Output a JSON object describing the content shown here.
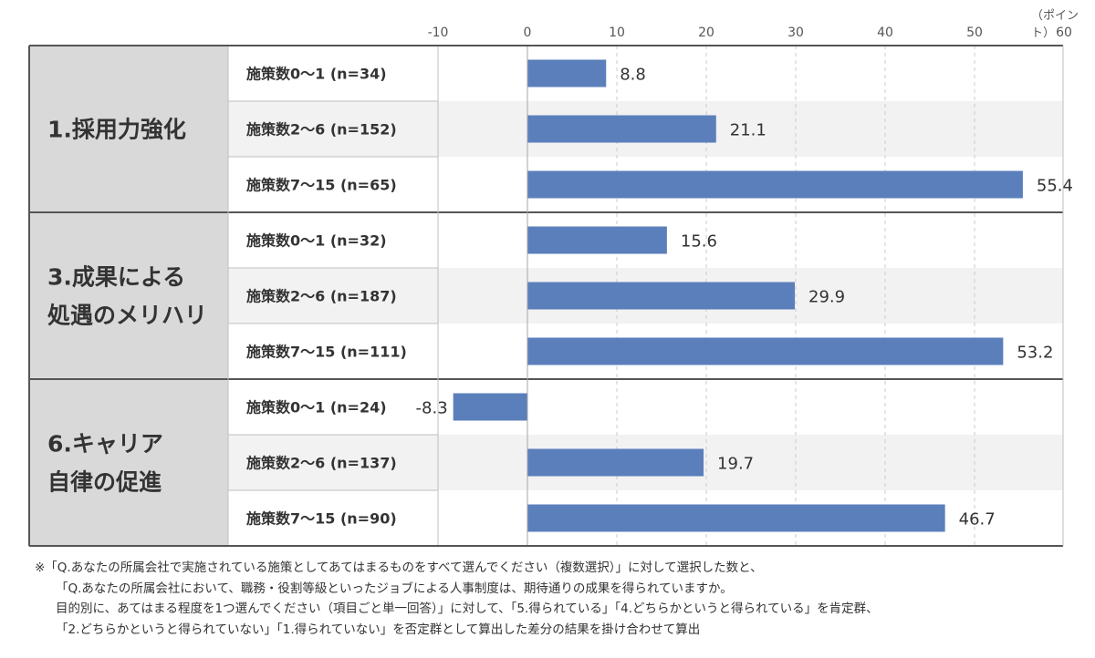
{
  "chart_data": {
    "type": "bar",
    "orientation": "horizontal",
    "unit_label": "（ポイント）",
    "xlim": [
      -10,
      60
    ],
    "x_ticks": [
      -10,
      0,
      10,
      20,
      30,
      40,
      50,
      60
    ],
    "grid": true,
    "colors": {
      "bar": "#5b7fbb",
      "group_bg": "#d9d9d9",
      "row_alt_bg": "#f2f2f2"
    },
    "groups": [
      {
        "label_lines": [
          "1.採用力強化"
        ],
        "rows": [
          {
            "label": "施策数0～1 (n=34)",
            "value": 8.8,
            "value_label": "8.8"
          },
          {
            "label": "施策数2～6 (n=152)",
            "value": 21.1,
            "value_label": "21.1"
          },
          {
            "label": "施策数7～15 (n=65)",
            "value": 55.4,
            "value_label": "55.4"
          }
        ]
      },
      {
        "label_lines": [
          "3.成果による",
          "処遇のメリハリ"
        ],
        "rows": [
          {
            "label": "施策数0～1 (n=32)",
            "value": 15.6,
            "value_label": "15.6"
          },
          {
            "label": "施策数2～6 (n=187)",
            "value": 29.9,
            "value_label": "29.9"
          },
          {
            "label": "施策数7～15 (n=111)",
            "value": 53.2,
            "value_label": "53.2"
          }
        ]
      },
      {
        "label_lines": [
          "6.キャリア",
          "自律の促進"
        ],
        "rows": [
          {
            "label": "施策数0～1 (n=24)",
            "value": -8.3,
            "value_label": "-8.3"
          },
          {
            "label": "施策数2～6 (n=137)",
            "value": 19.7,
            "value_label": "19.7"
          },
          {
            "label": "施策数7～15 (n=90)",
            "value": 46.7,
            "value_label": "46.7"
          }
        ]
      }
    ]
  },
  "notes": [
    "※「Q.あなたの所属会社で実施されている施策としてあてはまるものをすべて選んでください（複数選択）」に対して選択した数と、",
    "「Q.あなたの所属会社において、職務・役割等級といったジョブによる人事制度は、期待通りの成果を得られていますか。",
    "目的別に、あてはまる程度を1つ選んでください（項目ごと単一回答）」に対して、「5.得られている」「4.どちらかというと得られている」を肯定群、",
    "「2.どちらかというと得られていない」「1.得られていない」を否定群として算出した差分の結果を掛け合わせて算出"
  ]
}
